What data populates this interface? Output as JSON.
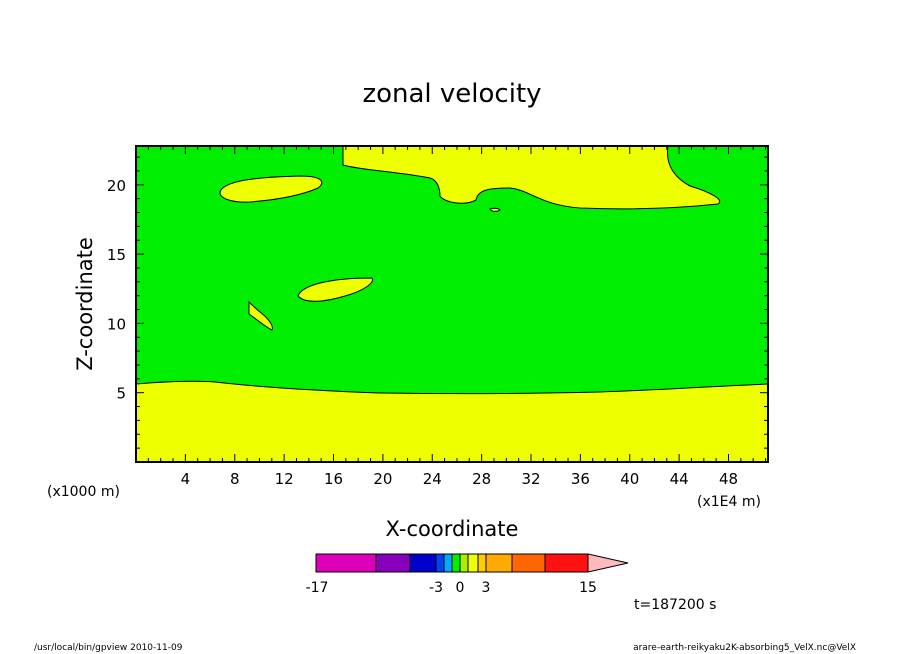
{
  "chart_data": {
    "type": "contour",
    "title": "zonal velocity",
    "xlabel": "X-coordinate",
    "ylabel": "Z-coordinate",
    "x_unit": "(x1E4 m)",
    "y_unit": "(x1000 m)",
    "xlim": [
      0,
      51.2
    ],
    "ylim": [
      0,
      22.8
    ],
    "x_ticks": [
      "4",
      "8",
      "12",
      "16",
      "20",
      "24",
      "28",
      "32",
      "36",
      "40",
      "44",
      "48"
    ],
    "y_ticks": [
      "5",
      "10",
      "15",
      "20"
    ],
    "levels": [
      -17,
      -3,
      0,
      3,
      15
    ],
    "time_label": "t=187200 s",
    "regions": [
      {
        "value_range": "0 to 1.5",
        "color": "#00ee00",
        "description": "background"
      },
      {
        "value_range": "1.5 to 3",
        "color": "#eeff00",
        "description": "lower layer, z < ~5.5"
      },
      {
        "value_range": "1.5 to 3",
        "color": "#eeff00",
        "description": "upper layer near z 18.5-22.8"
      },
      {
        "value_range": "1.5 to 3",
        "color": "#eeff00",
        "description": "blob near x 7-15, z 19-20.5"
      },
      {
        "value_range": "1.5 to 3",
        "color": "#eeff00",
        "description": "blob near x 13-19, z 11.5-13.5"
      },
      {
        "value_range": "1.5 to 3",
        "color": "#eeff00",
        "description": "blob near x 9-11, z 9.5-11.5"
      }
    ]
  },
  "colorbar": {
    "labels": [
      "-17",
      "-3",
      "0",
      "3",
      "15"
    ],
    "colors": [
      "#dd00bb",
      "#8800bb",
      "#0000cc",
      "#0044ee",
      "#00aaff",
      "#00ee00",
      "#aaee00",
      "#eeff00",
      "#ffcc00",
      "#ffaa00",
      "#ff6600",
      "#ff1111",
      "#ff7777",
      "#ffbbbb"
    ]
  },
  "footer": {
    "left": "/usr/local/bin/gpview   2010-11-09",
    "right": "arare-earth-reikyaku2K-absorbing5_VelX.nc@VelX"
  }
}
